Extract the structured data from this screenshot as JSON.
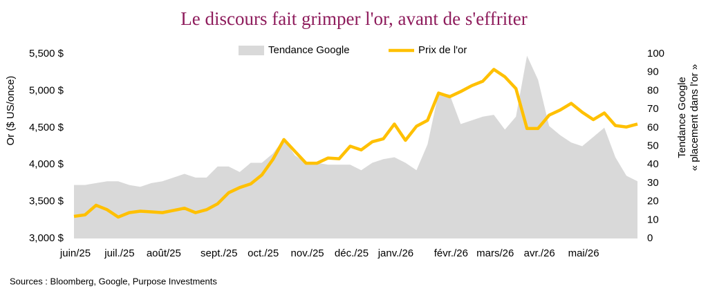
{
  "chart_data": {
    "type": "combo",
    "title": "Le discours fait grimper l'or, avant de s'effriter",
    "y_label": "Or ($ US/once)",
    "y2_label": [
      "Tendance Google",
      "« placement dans l'or »"
    ],
    "source": "Sources : Bloomberg, Google, Purpose Investments",
    "categories": [
      "juin/25",
      null,
      null,
      null,
      "juil./25",
      null,
      null,
      null,
      "août/25",
      null,
      null,
      null,
      null,
      "sept./25",
      null,
      null,
      null,
      "oct./25",
      null,
      null,
      null,
      "nov./25",
      null,
      null,
      null,
      "déc./25",
      null,
      null,
      null,
      "janv./26",
      null,
      null,
      null,
      null,
      "févr./26",
      null,
      null,
      null,
      "mars/26",
      null,
      null,
      null,
      "avr./26",
      null,
      null,
      null,
      "mai/26",
      null,
      null,
      null,
      null,
      null
    ],
    "series": [
      {
        "name": "Tendance Google",
        "type": "area",
        "axis": "y2",
        "color": "#d9d9d9",
        "values": [
          29,
          29,
          30,
          31,
          31,
          29,
          28,
          30,
          31,
          33,
          35,
          33,
          33,
          39,
          39,
          36,
          41,
          41,
          46,
          54,
          45,
          41,
          41,
          40,
          40,
          40,
          37,
          41,
          43,
          44,
          41,
          37,
          51,
          79,
          78,
          62,
          64,
          66,
          67,
          59,
          66,
          99,
          86,
          61,
          56,
          52,
          50,
          55,
          60,
          44,
          34,
          31
        ]
      },
      {
        "name": "Prix de l'or",
        "type": "line",
        "color": "#ffc000",
        "values": [
          3300,
          3320,
          3450,
          3390,
          3290,
          3350,
          3370,
          3360,
          3350,
          3380,
          3410,
          3350,
          3390,
          3470,
          3620,
          3690,
          3740,
          3860,
          4070,
          4340,
          4180,
          4020,
          4020,
          4090,
          4080,
          4250,
          4200,
          4310,
          4350,
          4550,
          4330,
          4520,
          4600,
          4970,
          4920,
          4990,
          5070,
          5130,
          5290,
          5190,
          5030,
          4490,
          4490,
          4670,
          4740,
          4830,
          4710,
          4610,
          4700,
          4530,
          4510,
          4550
        ]
      }
    ],
    "ylim": [
      3000,
      5500
    ],
    "yticks": [
      {
        "value": 3000,
        "label": "3,000 $"
      },
      {
        "value": 3500,
        "label": "3,500 $"
      },
      {
        "value": 4000,
        "label": "4,000 $"
      },
      {
        "value": 4500,
        "label": "4,500 $"
      },
      {
        "value": 5000,
        "label": "5,000 $"
      },
      {
        "value": 5500,
        "label": "5,500 $"
      }
    ],
    "y2lim": [
      0,
      100
    ],
    "y2ticks": [
      0,
      10,
      20,
      30,
      40,
      50,
      60,
      70,
      80,
      90,
      100
    ],
    "legend": "top"
  }
}
